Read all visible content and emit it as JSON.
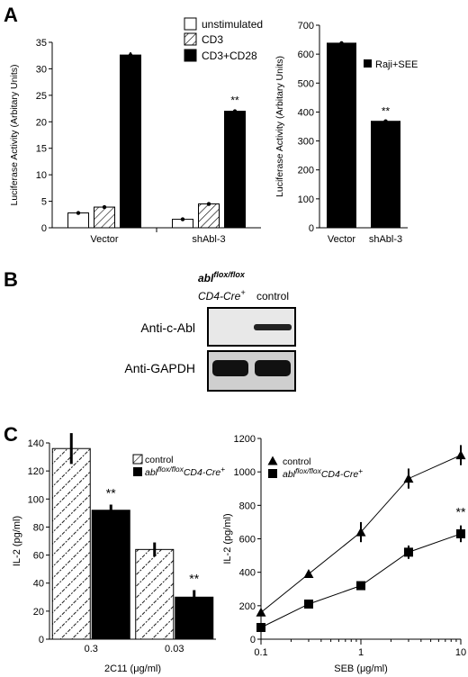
{
  "panels": {
    "A": "A",
    "B": "B",
    "C": "C"
  },
  "chart_data": [
    {
      "id": "A-left",
      "type": "bar",
      "ylabel": "Luciferase Activity (Arbitary Units)",
      "ylim": [
        0,
        35
      ],
      "yticks": [
        "0",
        "5",
        "10",
        "15",
        "20",
        "25",
        "30",
        "35"
      ],
      "categories": [
        "Vector",
        "shAbl-3"
      ],
      "series": [
        {
          "name": "unstimulated",
          "values": [
            2.8,
            1.6
          ],
          "errors": [
            0.2,
            0.2
          ],
          "fill": "white"
        },
        {
          "name": "CD3",
          "values": [
            3.9,
            4.5
          ],
          "errors": [
            0.2,
            0.2
          ],
          "fill": "hatch"
        },
        {
          "name": "CD3+CD28",
          "values": [
            32.6,
            22.0
          ],
          "errors": [
            0.5,
            0.3
          ],
          "fill": "black"
        }
      ],
      "annotations": [
        {
          "text": "**",
          "category": 1,
          "series": 2
        }
      ],
      "legend": "top-right"
    },
    {
      "id": "A-right",
      "type": "bar",
      "ylabel": "Luciferase Activity (Arbitary Units)",
      "ylim": [
        0,
        700
      ],
      "yticks": [
        "0",
        "100",
        "200",
        "300",
        "400",
        "500",
        "600",
        "700"
      ],
      "categories": [
        "Vector",
        "shAbl-3"
      ],
      "series": [
        {
          "name": "Raji+SEE",
          "values": [
            638,
            368
          ],
          "errors": [
            4,
            4
          ],
          "fill": "black"
        }
      ],
      "annotations": [
        {
          "text": "**",
          "category": 1,
          "series": 0
        }
      ],
      "legend": "top-right"
    },
    {
      "id": "C-left",
      "type": "bar",
      "ylabel": "IL-2 (pg/ml)",
      "xlabel": "2C11 (μg/ml)",
      "ylim": [
        0,
        140
      ],
      "yticks": [
        "0",
        "20",
        "40",
        "60",
        "80",
        "100",
        "120",
        "140"
      ],
      "categories": [
        "0.3",
        "0.03"
      ],
      "series": [
        {
          "name": "control",
          "values": [
            136,
            64
          ],
          "errors": [
            11,
            5
          ],
          "fill": "hatch"
        },
        {
          "name": "abl flox/flox CD4-Cre+",
          "values": [
            92,
            30
          ],
          "errors": [
            4,
            5
          ],
          "fill": "black"
        }
      ],
      "annotations": [
        {
          "text": "**",
          "category": 0,
          "series": 1
        },
        {
          "text": "**",
          "category": 1,
          "series": 1
        }
      ],
      "legend": "top-right"
    },
    {
      "id": "C-right",
      "type": "line",
      "ylabel": "IL-2 (pg/ml)",
      "xlabel": "SEB (μg/ml)",
      "xscale": "log",
      "xlim": [
        0.1,
        10
      ],
      "xticks": [
        "0.1",
        "1",
        "10"
      ],
      "ylim": [
        0,
        1200
      ],
      "yticks": [
        "0",
        "200",
        "400",
        "600",
        "800",
        "1000",
        "1200"
      ],
      "x": [
        0.1,
        0.3,
        1,
        3,
        10
      ],
      "series": [
        {
          "name": "control",
          "marker": "triangle",
          "values": [
            160,
            390,
            640,
            960,
            1100
          ],
          "errors": [
            15,
            20,
            60,
            60,
            60
          ]
        },
        {
          "name": "abl flox/flox CD4-Cre+",
          "marker": "square",
          "values": [
            70,
            210,
            320,
            520,
            630
          ],
          "errors": [
            15,
            20,
            20,
            40,
            50
          ]
        }
      ],
      "annotations": [
        {
          "text": "**",
          "x": 10,
          "series": 1
        }
      ],
      "legend": "top-left"
    }
  ],
  "blot": {
    "col1_main": "abl",
    "col1_sup": "flox/flox",
    "col1_line2_main": "CD4-Cre",
    "col1_line2_sup": "+",
    "col2": "control",
    "row1": "Anti-c-Abl",
    "row2": "Anti-GAPDH"
  },
  "legend_text": {
    "abl": "abl",
    "flox": "flox/flox",
    "cre": "CD4-Cre",
    "plus": "+"
  },
  "significance": "**"
}
